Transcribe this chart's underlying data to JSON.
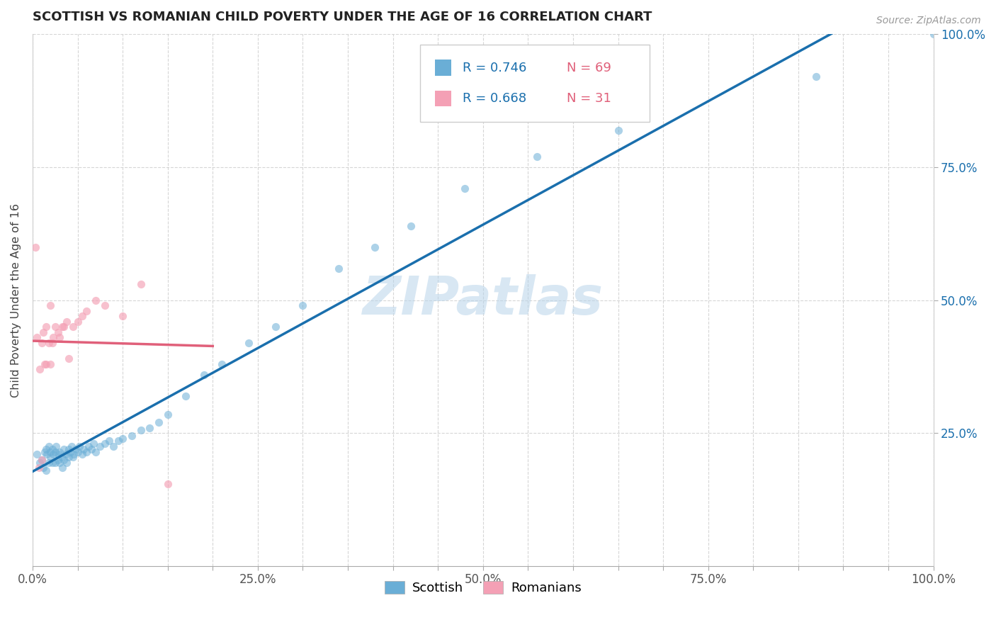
{
  "title": "SCOTTISH VS ROMANIAN CHILD POVERTY UNDER THE AGE OF 16 CORRELATION CHART",
  "source": "Source: ZipAtlas.com",
  "ylabel": "Child Poverty Under the Age of 16",
  "xlim": [
    0.0,
    1.0
  ],
  "ylim": [
    0.0,
    1.0
  ],
  "xtick_labels": [
    "0.0%",
    "",
    "",
    "",
    "",
    "25.0%",
    "",
    "",
    "",
    "",
    "50.0%",
    "",
    "",
    "",
    "",
    "75.0%",
    "",
    "",
    "",
    "",
    "100.0%"
  ],
  "xtick_positions": [
    0.0,
    0.05,
    0.1,
    0.15,
    0.2,
    0.25,
    0.3,
    0.35,
    0.4,
    0.45,
    0.5,
    0.55,
    0.6,
    0.65,
    0.7,
    0.75,
    0.8,
    0.85,
    0.9,
    0.95,
    1.0
  ],
  "ytick_positions": [
    0.25,
    0.5,
    0.75,
    1.0
  ],
  "ytick_labels": [
    "25.0%",
    "50.0%",
    "75.0%",
    "100.0%"
  ],
  "legend_r_scottish": "R = 0.746",
  "legend_n_scottish": "N = 69",
  "legend_r_romanians": "R = 0.668",
  "legend_n_romanians": "N = 31",
  "scottish_color": "#6aaed6",
  "romanian_color": "#f4a0b5",
  "regression_scottish_color": "#1a6fad",
  "regression_romanian_color": "#e0607a",
  "r_color": "#1a6fad",
  "n_color": "#e0607a",
  "watermark_color": "#b8d4ea",
  "scottish_x": [
    0.005,
    0.008,
    0.01,
    0.012,
    0.013,
    0.015,
    0.015,
    0.016,
    0.018,
    0.018,
    0.02,
    0.02,
    0.022,
    0.022,
    0.023,
    0.025,
    0.025,
    0.026,
    0.028,
    0.028,
    0.03,
    0.03,
    0.032,
    0.033,
    0.035,
    0.035,
    0.037,
    0.038,
    0.04,
    0.04,
    0.042,
    0.043,
    0.045,
    0.046,
    0.048,
    0.05,
    0.052,
    0.055,
    0.057,
    0.06,
    0.062,
    0.065,
    0.068,
    0.07,
    0.075,
    0.08,
    0.085,
    0.09,
    0.095,
    0.1,
    0.11,
    0.12,
    0.13,
    0.14,
    0.15,
    0.17,
    0.19,
    0.21,
    0.24,
    0.27,
    0.3,
    0.34,
    0.38,
    0.42,
    0.48,
    0.56,
    0.65,
    0.87,
    1.0
  ],
  "scottish_y": [
    0.21,
    0.195,
    0.2,
    0.185,
    0.215,
    0.18,
    0.22,
    0.21,
    0.195,
    0.225,
    0.205,
    0.215,
    0.195,
    0.22,
    0.21,
    0.215,
    0.195,
    0.225,
    0.2,
    0.21,
    0.195,
    0.215,
    0.205,
    0.185,
    0.2,
    0.22,
    0.21,
    0.195,
    0.205,
    0.22,
    0.215,
    0.225,
    0.205,
    0.21,
    0.22,
    0.215,
    0.225,
    0.21,
    0.22,
    0.215,
    0.225,
    0.22,
    0.23,
    0.215,
    0.225,
    0.23,
    0.235,
    0.225,
    0.235,
    0.24,
    0.245,
    0.255,
    0.26,
    0.27,
    0.285,
    0.32,
    0.36,
    0.38,
    0.42,
    0.45,
    0.49,
    0.56,
    0.6,
    0.64,
    0.71,
    0.77,
    0.82,
    0.92,
    1.0
  ],
  "romanian_x": [
    0.003,
    0.005,
    0.007,
    0.008,
    0.01,
    0.01,
    0.012,
    0.013,
    0.015,
    0.015,
    0.018,
    0.02,
    0.02,
    0.022,
    0.023,
    0.025,
    0.028,
    0.03,
    0.033,
    0.035,
    0.038,
    0.04,
    0.045,
    0.05,
    0.055,
    0.06,
    0.07,
    0.08,
    0.1,
    0.12,
    0.15
  ],
  "romanian_y": [
    0.6,
    0.43,
    0.185,
    0.37,
    0.2,
    0.42,
    0.44,
    0.38,
    0.45,
    0.38,
    0.42,
    0.38,
    0.49,
    0.42,
    0.43,
    0.45,
    0.44,
    0.43,
    0.45,
    0.45,
    0.46,
    0.39,
    0.45,
    0.46,
    0.47,
    0.48,
    0.5,
    0.49,
    0.47,
    0.53,
    0.155
  ]
}
